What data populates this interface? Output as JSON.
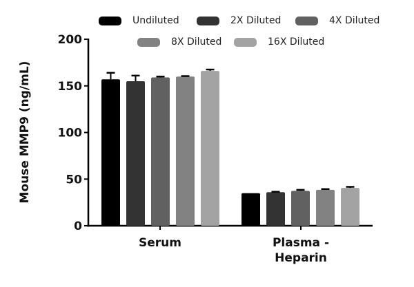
{
  "chart_data": {
    "type": "bar",
    "title": "",
    "xlabel": "",
    "ylabel": "Mouse MMP9 (ng/mL)",
    "ylim": [
      0,
      200
    ],
    "yticks": [
      0,
      50,
      100,
      150,
      200
    ],
    "grid": false,
    "legend_position": "top",
    "categories": [
      "Serum",
      "Plasma - Heparin"
    ],
    "category_labels": [
      [
        "Serum"
      ],
      [
        "Plasma -",
        "Heparin"
      ]
    ],
    "series": [
      {
        "name": "Undiluted",
        "color": "#000000",
        "values": [
          157,
          35
        ],
        "errors": [
          7,
          0
        ]
      },
      {
        "name": "2X Diluted",
        "color": "#333333",
        "values": [
          155,
          36
        ],
        "errors": [
          6,
          0.5
        ]
      },
      {
        "name": "4X Diluted",
        "color": "#616161",
        "values": [
          159,
          37.5
        ],
        "errors": [
          1,
          1
        ]
      },
      {
        "name": "8X Diluted",
        "color": "#828282",
        "values": [
          160,
          38.5
        ],
        "errors": [
          0.5,
          0.8
        ]
      },
      {
        "name": "16X Diluted",
        "color": "#a3a3a3",
        "values": [
          166,
          40.5
        ],
        "errors": [
          1.5,
          1.2
        ]
      }
    ]
  }
}
